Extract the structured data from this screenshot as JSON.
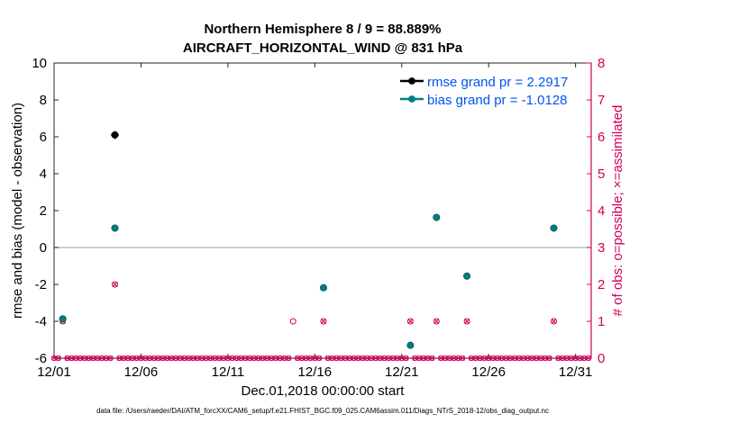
{
  "chart_data": {
    "type": "scatter",
    "title": "Northern Hemisphere 8 / 9 = 88.889%",
    "subtitle": "AIRCRAFT_HORIZONTAL_WIND @ 831 hPa",
    "xlabel": "Dec.01,2018 00:00:00 start",
    "ylabel_left": "rmse and bias (model - observation)",
    "ylabel_right": "# of obs: o=possible; ×=assimilated",
    "footnote": "data file: /Users/raeder/DAI/ATM_forcXX/CAM6_setup/f.e21.FHIST_BGC.f09_025.CAM6assim.011/Diags_NTrS_2018-12/obs_diag_output.nc",
    "x_ticks": [
      1,
      6,
      11,
      16,
      21,
      26,
      31
    ],
    "x_tick_labels": [
      "12/01",
      "12/06",
      "12/11",
      "12/16",
      "12/21",
      "12/26",
      "12/31"
    ],
    "xlim": [
      1,
      31.9
    ],
    "ylim_left": [
      -6,
      10
    ],
    "y_ticks_left": [
      -6,
      -4,
      -2,
      0,
      2,
      4,
      6,
      8,
      10
    ],
    "y_tick_labels_left": [
      "-6",
      "-4",
      "-2",
      "0",
      "2",
      "4",
      "6",
      "8",
      "10"
    ],
    "ylim_right": [
      0,
      8
    ],
    "y_ticks_right": [
      0,
      1,
      2,
      3,
      4,
      5,
      6,
      7,
      8
    ],
    "y_tick_labels_right": [
      "0",
      "1",
      "2",
      "3",
      "4",
      "5",
      "6",
      "7",
      "8"
    ],
    "zero_line": 0,
    "series": [
      {
        "name": "rmse",
        "legend": "rmse grand pr = 2.2917",
        "color": "#000000",
        "points": [
          [
            1.5,
            -3.87
          ],
          [
            4.5,
            6.1
          ]
        ]
      },
      {
        "name": "bias",
        "legend": "bias grand pr = -1.0128",
        "color": "#008080",
        "points": [
          [
            1.5,
            -3.87
          ],
          [
            4.5,
            1.05
          ],
          [
            16.5,
            -2.18
          ],
          [
            21.5,
            -5.3
          ],
          [
            23.0,
            1.63
          ],
          [
            24.75,
            -1.55
          ],
          [
            29.75,
            1.05
          ]
        ]
      },
      {
        "name": "obs_possible",
        "axis": "right",
        "color": "#d1005a",
        "points": [
          [
            1.5,
            1
          ],
          [
            4.5,
            2
          ],
          [
            14.75,
            1
          ],
          [
            16.5,
            1
          ],
          [
            21.5,
            1
          ],
          [
            23.0,
            1
          ],
          [
            24.75,
            1
          ],
          [
            29.75,
            1
          ]
        ]
      },
      {
        "name": "obs_assimilated",
        "axis": "right",
        "color": "#d1005a",
        "points": [
          [
            1.5,
            1
          ],
          [
            4.5,
            2
          ],
          [
            16.5,
            1
          ],
          [
            21.5,
            1
          ],
          [
            23.0,
            1
          ],
          [
            24.75,
            1
          ],
          [
            29.75,
            1
          ]
        ]
      }
    ],
    "obs_zero_spacing_days": 0.25,
    "colors": {
      "left_axis": "#000000",
      "right_axis": "#d1005a",
      "legend_text": "#0055ee",
      "zero_line": "#b0b0b0"
    }
  }
}
